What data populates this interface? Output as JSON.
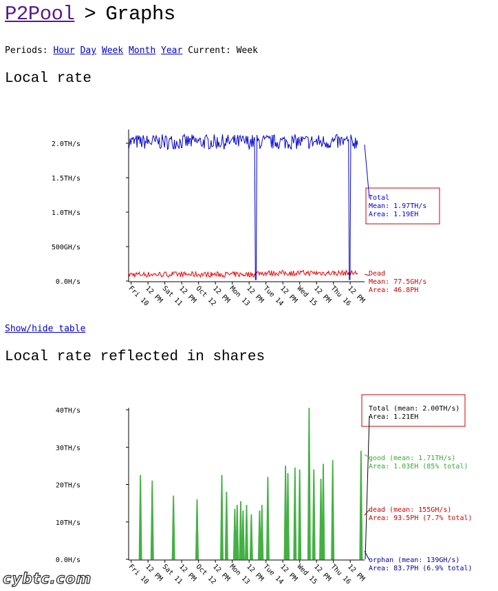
{
  "header": {
    "home_link": "P2Pool",
    "separator": ">",
    "title": "Graphs"
  },
  "periods": {
    "label": "Periods:",
    "links": [
      "Hour",
      "Day",
      "Week",
      "Month",
      "Year"
    ],
    "current": "Current: Week"
  },
  "watermark": "cybtc.com",
  "chart_data": [
    {
      "type": "line",
      "title": "Local rate",
      "y_ticks": [
        "0.0H/s",
        "500GH/s",
        "1.0TH/s",
        "1.5TH/s",
        "2.0TH/s"
      ],
      "y_tick_values_ths": [
        0,
        0.5,
        1.0,
        1.5,
        2.0
      ],
      "x_ticks": [
        "Fri 10",
        "12 PM",
        "Sat 11",
        "12 PM",
        "Oct 12",
        "12 PM",
        "Mon 13",
        "12 PM",
        "Tue 14",
        "12 PM",
        "Wed 15",
        "12 PM",
        "Thu 16",
        "12 PM"
      ],
      "ylim_ths": [
        0,
        2.2
      ],
      "series": [
        {
          "name": "Total",
          "color": "#0000cc",
          "base_ths": 2.02,
          "dips_at_fraction": [
            0.555,
            0.965
          ]
        },
        {
          "name": "Dead",
          "color": "#ee0000",
          "base_ths": 0.08
        }
      ],
      "legend": [
        {
          "lines": [
            "Total",
            "Mean: 1.97TH/s",
            "Area: 1.19EH"
          ],
          "color": "#0000cc",
          "boxed": true
        },
        {
          "lines": [
            "Dead",
            "Mean: 77.5GH/s",
            "Area: 46.8PH"
          ],
          "color": "#cc0000",
          "boxed": false
        }
      ],
      "show_hide_table": "Show/hide table"
    },
    {
      "type": "area",
      "title": "Local rate reflected in shares",
      "y_ticks": [
        "0.0H/s",
        "10TH/s",
        "20TH/s",
        "30TH/s",
        "40TH/s"
      ],
      "y_tick_values_ths": [
        0,
        10,
        20,
        30,
        40
      ],
      "x_ticks": [
        "Fri 10",
        "12 PM",
        "Sat 11",
        "12 PM",
        "Oct 12",
        "12 PM",
        "Mon 13",
        "12 PM",
        "Tue 14",
        "12 PM",
        "Wed 15",
        "12 PM",
        "Thu 16",
        "12 PM"
      ],
      "ylim_ths": [
        0,
        40
      ],
      "spike_color": "#44b044",
      "spikes": [
        {
          "x": 0.05,
          "v": 22.5
        },
        {
          "x": 0.1,
          "v": 21
        },
        {
          "x": 0.19,
          "v": 17
        },
        {
          "x": 0.29,
          "v": 16
        },
        {
          "x": 0.395,
          "v": 22.5
        },
        {
          "x": 0.415,
          "v": 18
        },
        {
          "x": 0.45,
          "v": 13.5
        },
        {
          "x": 0.46,
          "v": 14.5
        },
        {
          "x": 0.475,
          "v": 15.5
        },
        {
          "x": 0.485,
          "v": 13
        },
        {
          "x": 0.5,
          "v": 14.5
        },
        {
          "x": 0.52,
          "v": 12
        },
        {
          "x": 0.555,
          "v": 13
        },
        {
          "x": 0.565,
          "v": 14.5
        },
        {
          "x": 0.59,
          "v": 22
        },
        {
          "x": 0.665,
          "v": 25
        },
        {
          "x": 0.675,
          "v": 23
        },
        {
          "x": 0.705,
          "v": 24.5
        },
        {
          "x": 0.725,
          "v": 24
        },
        {
          "x": 0.765,
          "v": 40.5
        },
        {
          "x": 0.785,
          "v": 24
        },
        {
          "x": 0.815,
          "v": 21.5
        },
        {
          "x": 0.825,
          "v": 25.5
        },
        {
          "x": 0.865,
          "v": 26.5
        },
        {
          "x": 0.985,
          "v": 29
        }
      ],
      "legend": [
        {
          "lines": [
            "Total (mean: 2.00TH/s)",
            "Area: 1.21EH"
          ],
          "color": "#000000",
          "boxed": true
        },
        {
          "lines": [
            "good (mean: 1.71TH/s)",
            "Area: 1.03EH (85% total)"
          ],
          "color": "#33aa33",
          "boxed": false
        },
        {
          "lines": [
            "dead (mean: 155GH/s)",
            "Area: 93.5PH (7.7% total)"
          ],
          "color": "#cc0000",
          "boxed": false
        },
        {
          "lines": [
            "orphan (mean: 139GH/s)",
            "Area: 83.7PH (6.9% total)"
          ],
          "color": "#000099",
          "boxed": false
        }
      ]
    }
  ]
}
